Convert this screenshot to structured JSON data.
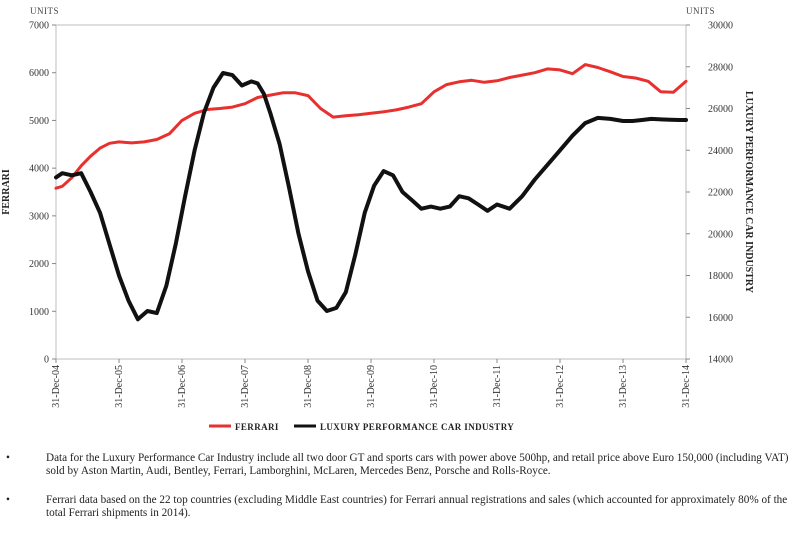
{
  "chart_data": {
    "type": "line",
    "left_unit": "UNITS",
    "right_unit": "UNITS",
    "ylabel_left": "FERRARI",
    "ylabel_right": "LUXURY PERFORMANCE CAR INDUSTRY",
    "ylim_left": [
      0,
      7000
    ],
    "ylim_right": [
      14000,
      30000
    ],
    "yticks_left": [
      "0",
      "1000",
      "2000",
      "3000",
      "4000",
      "5000",
      "6000",
      "7000"
    ],
    "yticks_right": [
      "14000",
      "16000",
      "18000",
      "20000",
      "22000",
      "24000",
      "26000",
      "28000",
      "30000"
    ],
    "x_labels": [
      "31-Dec-04",
      "31-Dec-05",
      "31-Dec-06",
      "31-Dec-07",
      "31-Dec-08",
      "31-Dec-09",
      "31-Dec-10",
      "31-Dec-11",
      "31-Dec-12",
      "31-Dec-13",
      "31-Dec-14"
    ],
    "x_range": [
      2004.0,
      2014.0
    ],
    "grid": false,
    "legend_position": "bottom",
    "series": [
      {
        "name": "FERRARI",
        "axis": "left",
        "color": "#e8302e",
        "x": [
          2004.0,
          2004.1,
          2004.25,
          2004.4,
          2004.55,
          2004.7,
          2004.85,
          2005.0,
          2005.2,
          2005.4,
          2005.6,
          2005.8,
          2006.0,
          2006.2,
          2006.4,
          2006.6,
          2006.8,
          2007.0,
          2007.2,
          2007.4,
          2007.6,
          2007.8,
          2008.0,
          2008.2,
          2008.4,
          2008.6,
          2008.8,
          2009.0,
          2009.2,
          2009.4,
          2009.6,
          2009.8,
          2010.0,
          2010.2,
          2010.4,
          2010.6,
          2010.8,
          2011.0,
          2011.2,
          2011.4,
          2011.6,
          2011.8,
          2012.0,
          2012.2,
          2012.4,
          2012.6,
          2012.8,
          2013.0,
          2013.2,
          2013.4,
          2013.6,
          2013.8,
          2014.0
        ],
        "y": [
          3580,
          3620,
          3800,
          4050,
          4250,
          4420,
          4520,
          4550,
          4530,
          4550,
          4600,
          4720,
          5000,
          5150,
          5230,
          5250,
          5280,
          5350,
          5480,
          5530,
          5580,
          5580,
          5520,
          5250,
          5070,
          5100,
          5120,
          5150,
          5180,
          5220,
          5280,
          5350,
          5600,
          5750,
          5810,
          5840,
          5800,
          5830,
          5900,
          5950,
          6000,
          6080,
          6060,
          5980,
          6170,
          6110,
          6020,
          5920,
          5890,
          5820,
          5600,
          5590,
          5820
        ]
      },
      {
        "name": "LUXURY PERFORMANCE CAR INDUSTRY",
        "axis": "right",
        "color": "#111111",
        "x": [
          2004.0,
          2004.1,
          2004.25,
          2004.4,
          2004.55,
          2004.7,
          2004.85,
          2005.0,
          2005.15,
          2005.3,
          2005.45,
          2005.6,
          2005.75,
          2005.9,
          2006.05,
          2006.2,
          2006.35,
          2006.5,
          2006.65,
          2006.8,
          2006.95,
          2007.1,
          2007.2,
          2007.3,
          2007.4,
          2007.55,
          2007.7,
          2007.85,
          2008.0,
          2008.15,
          2008.3,
          2008.45,
          2008.6,
          2008.75,
          2008.9,
          2009.05,
          2009.2,
          2009.35,
          2009.5,
          2009.65,
          2009.8,
          2009.95,
          2010.1,
          2010.25,
          2010.4,
          2010.55,
          2010.7,
          2010.85,
          2011.0,
          2011.2,
          2011.4,
          2011.6,
          2011.8,
          2012.0,
          2012.2,
          2012.4,
          2012.6,
          2012.8,
          2013.0,
          2013.15,
          2013.3,
          2013.45,
          2013.6,
          2013.75,
          2013.9,
          2014.0
        ],
        "y": [
          22700,
          22900,
          22800,
          22900,
          22000,
          21000,
          19500,
          18000,
          16800,
          15900,
          16300,
          16200,
          17500,
          19500,
          21800,
          24000,
          25800,
          27000,
          27700,
          27600,
          27100,
          27300,
          27200,
          26700,
          25800,
          24300,
          22200,
          20000,
          18200,
          16800,
          16300,
          16450,
          17200,
          19000,
          21000,
          22300,
          23000,
          22800,
          22000,
          21600,
          21200,
          21300,
          21200,
          21300,
          21800,
          21700,
          21400,
          21100,
          21400,
          21200,
          21800,
          22600,
          23300,
          24000,
          24700,
          25300,
          25550,
          25500,
          25400,
          25400,
          25450,
          25500,
          25480,
          25460,
          25450,
          25450
        ]
      }
    ]
  },
  "notes": [
    {
      "bullet": "•",
      "text": "Data for the Luxury Performance Car Industry include all two door GT and sports cars with power above 500hp, and retail price above Euro 150,000 (including VAT) sold by Aston Martin, Audi, Bentley, Ferrari, Lamborghini, McLaren, Mercedes Benz, Porsche and Rolls-Royce."
    },
    {
      "bullet": "•",
      "text": "Ferrari data based on the 22 top countries (excluding Middle East countries) for Ferrari annual registrations and sales (which accounted for approximately 80% of the total Ferrari shipments in 2014)."
    }
  ]
}
